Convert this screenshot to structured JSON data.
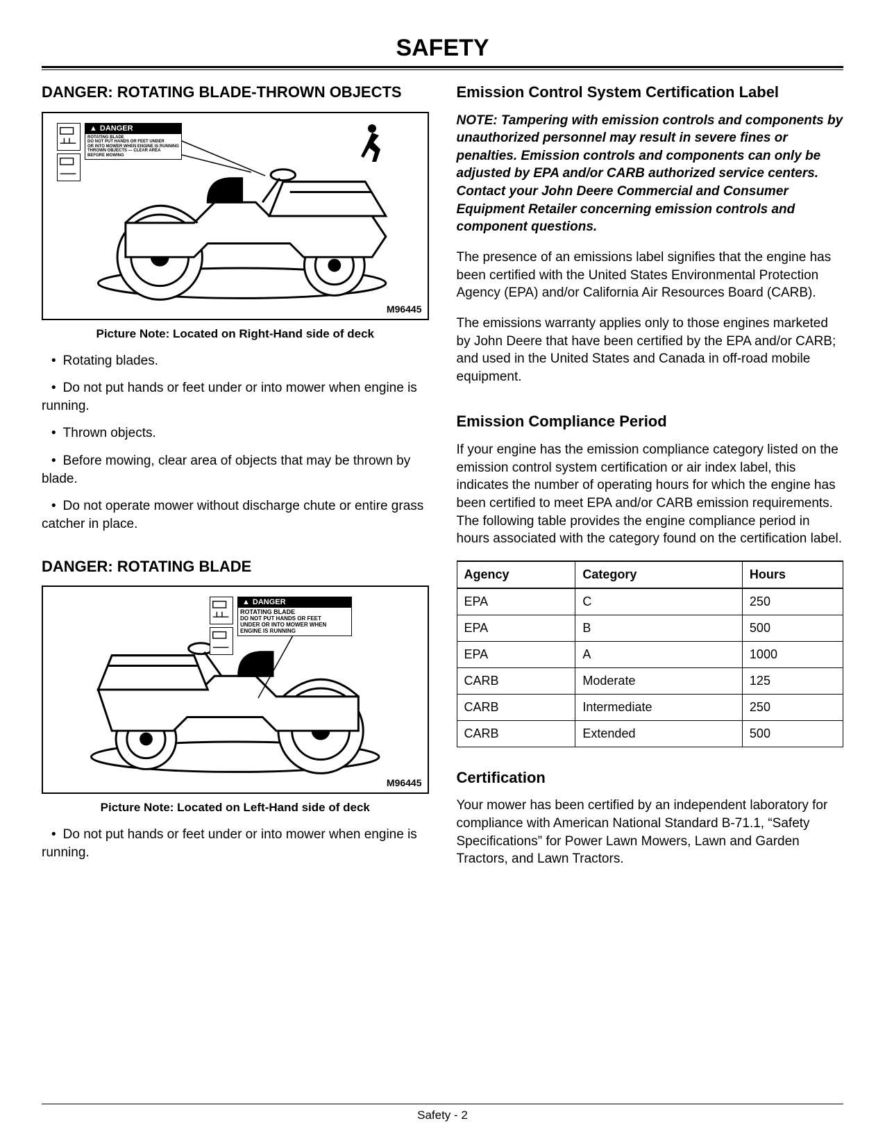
{
  "page": {
    "title": "SAFETY",
    "footer": "Safety - 2"
  },
  "left": {
    "section1": {
      "heading": "DANGER: ROTATING BLADE-THROWN OBJECTS",
      "figure_id": "M96445",
      "picture_note": "Picture Note:  Located on Right-Hand side of deck",
      "danger_word": "DANGER",
      "label_text": "ROTATING BLADE\nDO NOT PUT HANDS OR FEET\nUNDER OR INTO MOWER WHEN\nENGINE IS RUNNING\nTHROWN OBJECTS",
      "bullets": [
        "Rotating blades.",
        "Do not put hands or feet under or into mower when engine is running.",
        "Thrown objects.",
        "Before mowing, clear area of objects that may be thrown by blade.",
        "Do not operate mower without discharge chute or entire grass catcher in place."
      ]
    },
    "section2": {
      "heading": "DANGER: ROTATING BLADE",
      "figure_id": "M96445",
      "picture_note": "Picture Note:  Located on Left-Hand side of deck",
      "danger_word": "DANGER",
      "label_line1": "ROTATING BLADE",
      "label_line2": "DO NOT PUT HANDS OR FEET",
      "label_line3": "UNDER OR INTO MOWER WHEN",
      "label_line4": "ENGINE IS RUNNING",
      "bullets": [
        "Do not put hands or feet under or into mower when engine is running."
      ]
    }
  },
  "right": {
    "section1": {
      "heading": "Emission Control System Certification Label",
      "note": "NOTE: Tampering with emission controls and components by unauthorized personnel may result in severe fines or penalties. Emission controls and components can only be adjusted by EPA and/or CARB authorized service centers. Contact your John Deere Commercial and Consumer Equipment Retailer concerning emission controls and component questions.",
      "para1": "The presence of an emissions label signifies that the engine has been certified with the United States Environmental Protection Agency (EPA) and/or California Air Resources Board (CARB).",
      "para2": "The emissions warranty applies only to those engines marketed by John Deere that have been certified by the EPA and/or CARB; and used in the United States and Canada in off-road mobile equipment."
    },
    "section2": {
      "heading": "Emission Compliance Period",
      "para": "If your engine has the emission compliance category listed on the emission control system certification or air index label, this indicates the number of operating hours for which the engine has been certified to meet EPA and/or CARB emission requirements. The following table provides the engine compliance period in hours associated with the category found on the certification label.",
      "table": {
        "columns": [
          "Agency",
          "Category",
          "Hours"
        ],
        "rows": [
          [
            "EPA",
            "C",
            "250"
          ],
          [
            "EPA",
            "B",
            "500"
          ],
          [
            "EPA",
            "A",
            "1000"
          ],
          [
            "CARB",
            "Moderate",
            "125"
          ],
          [
            "CARB",
            "Intermediate",
            "250"
          ],
          [
            "CARB",
            "Extended",
            "500"
          ]
        ]
      }
    },
    "section3": {
      "heading": "Certification",
      "para": "Your mower has been certified by an independent laboratory for compliance with American National Standard B-71.1, “Safety Specifications” for Power Lawn Mowers, Lawn and Garden Tractors, and Lawn Tractors."
    }
  },
  "colors": {
    "text": "#000000",
    "background": "#ffffff",
    "border": "#000000"
  }
}
